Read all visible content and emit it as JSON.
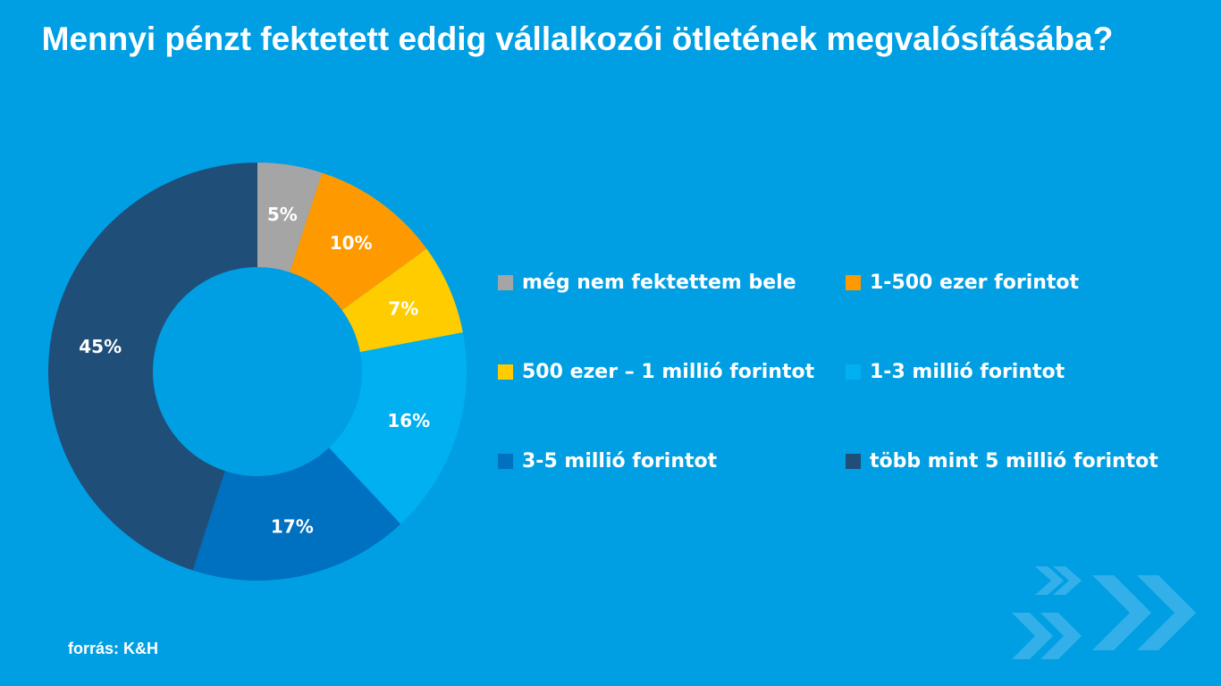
{
  "title": "Mennyi pénzt fektetett eddig vállalkozói ötletének megvalósításába?",
  "source": "forrás: K&H",
  "background_color": "#009FE3",
  "chart_data": {
    "type": "pie",
    "variant": "donut",
    "title": "Mennyi pénzt fektetett eddig vállalkozói ötletének megvalósításába?",
    "categories": [
      "még nem fektettem bele",
      "1-500 ezer forintot",
      "500 ezer – 1 millió forintot",
      "1-3 millió forintot",
      "3-5 millió forintot",
      "több mint 5 millió forintot"
    ],
    "values": [
      5,
      10,
      7,
      16,
      17,
      45
    ],
    "labels": [
      "5%",
      "10%",
      "7%",
      "16%",
      "17%",
      "45%"
    ],
    "colors": [
      "#A5A5A5",
      "#FF9900",
      "#FFCC00",
      "#00B0F0",
      "#0070C0",
      "#1F4E79"
    ],
    "unit": "%",
    "legend_position": "right"
  }
}
